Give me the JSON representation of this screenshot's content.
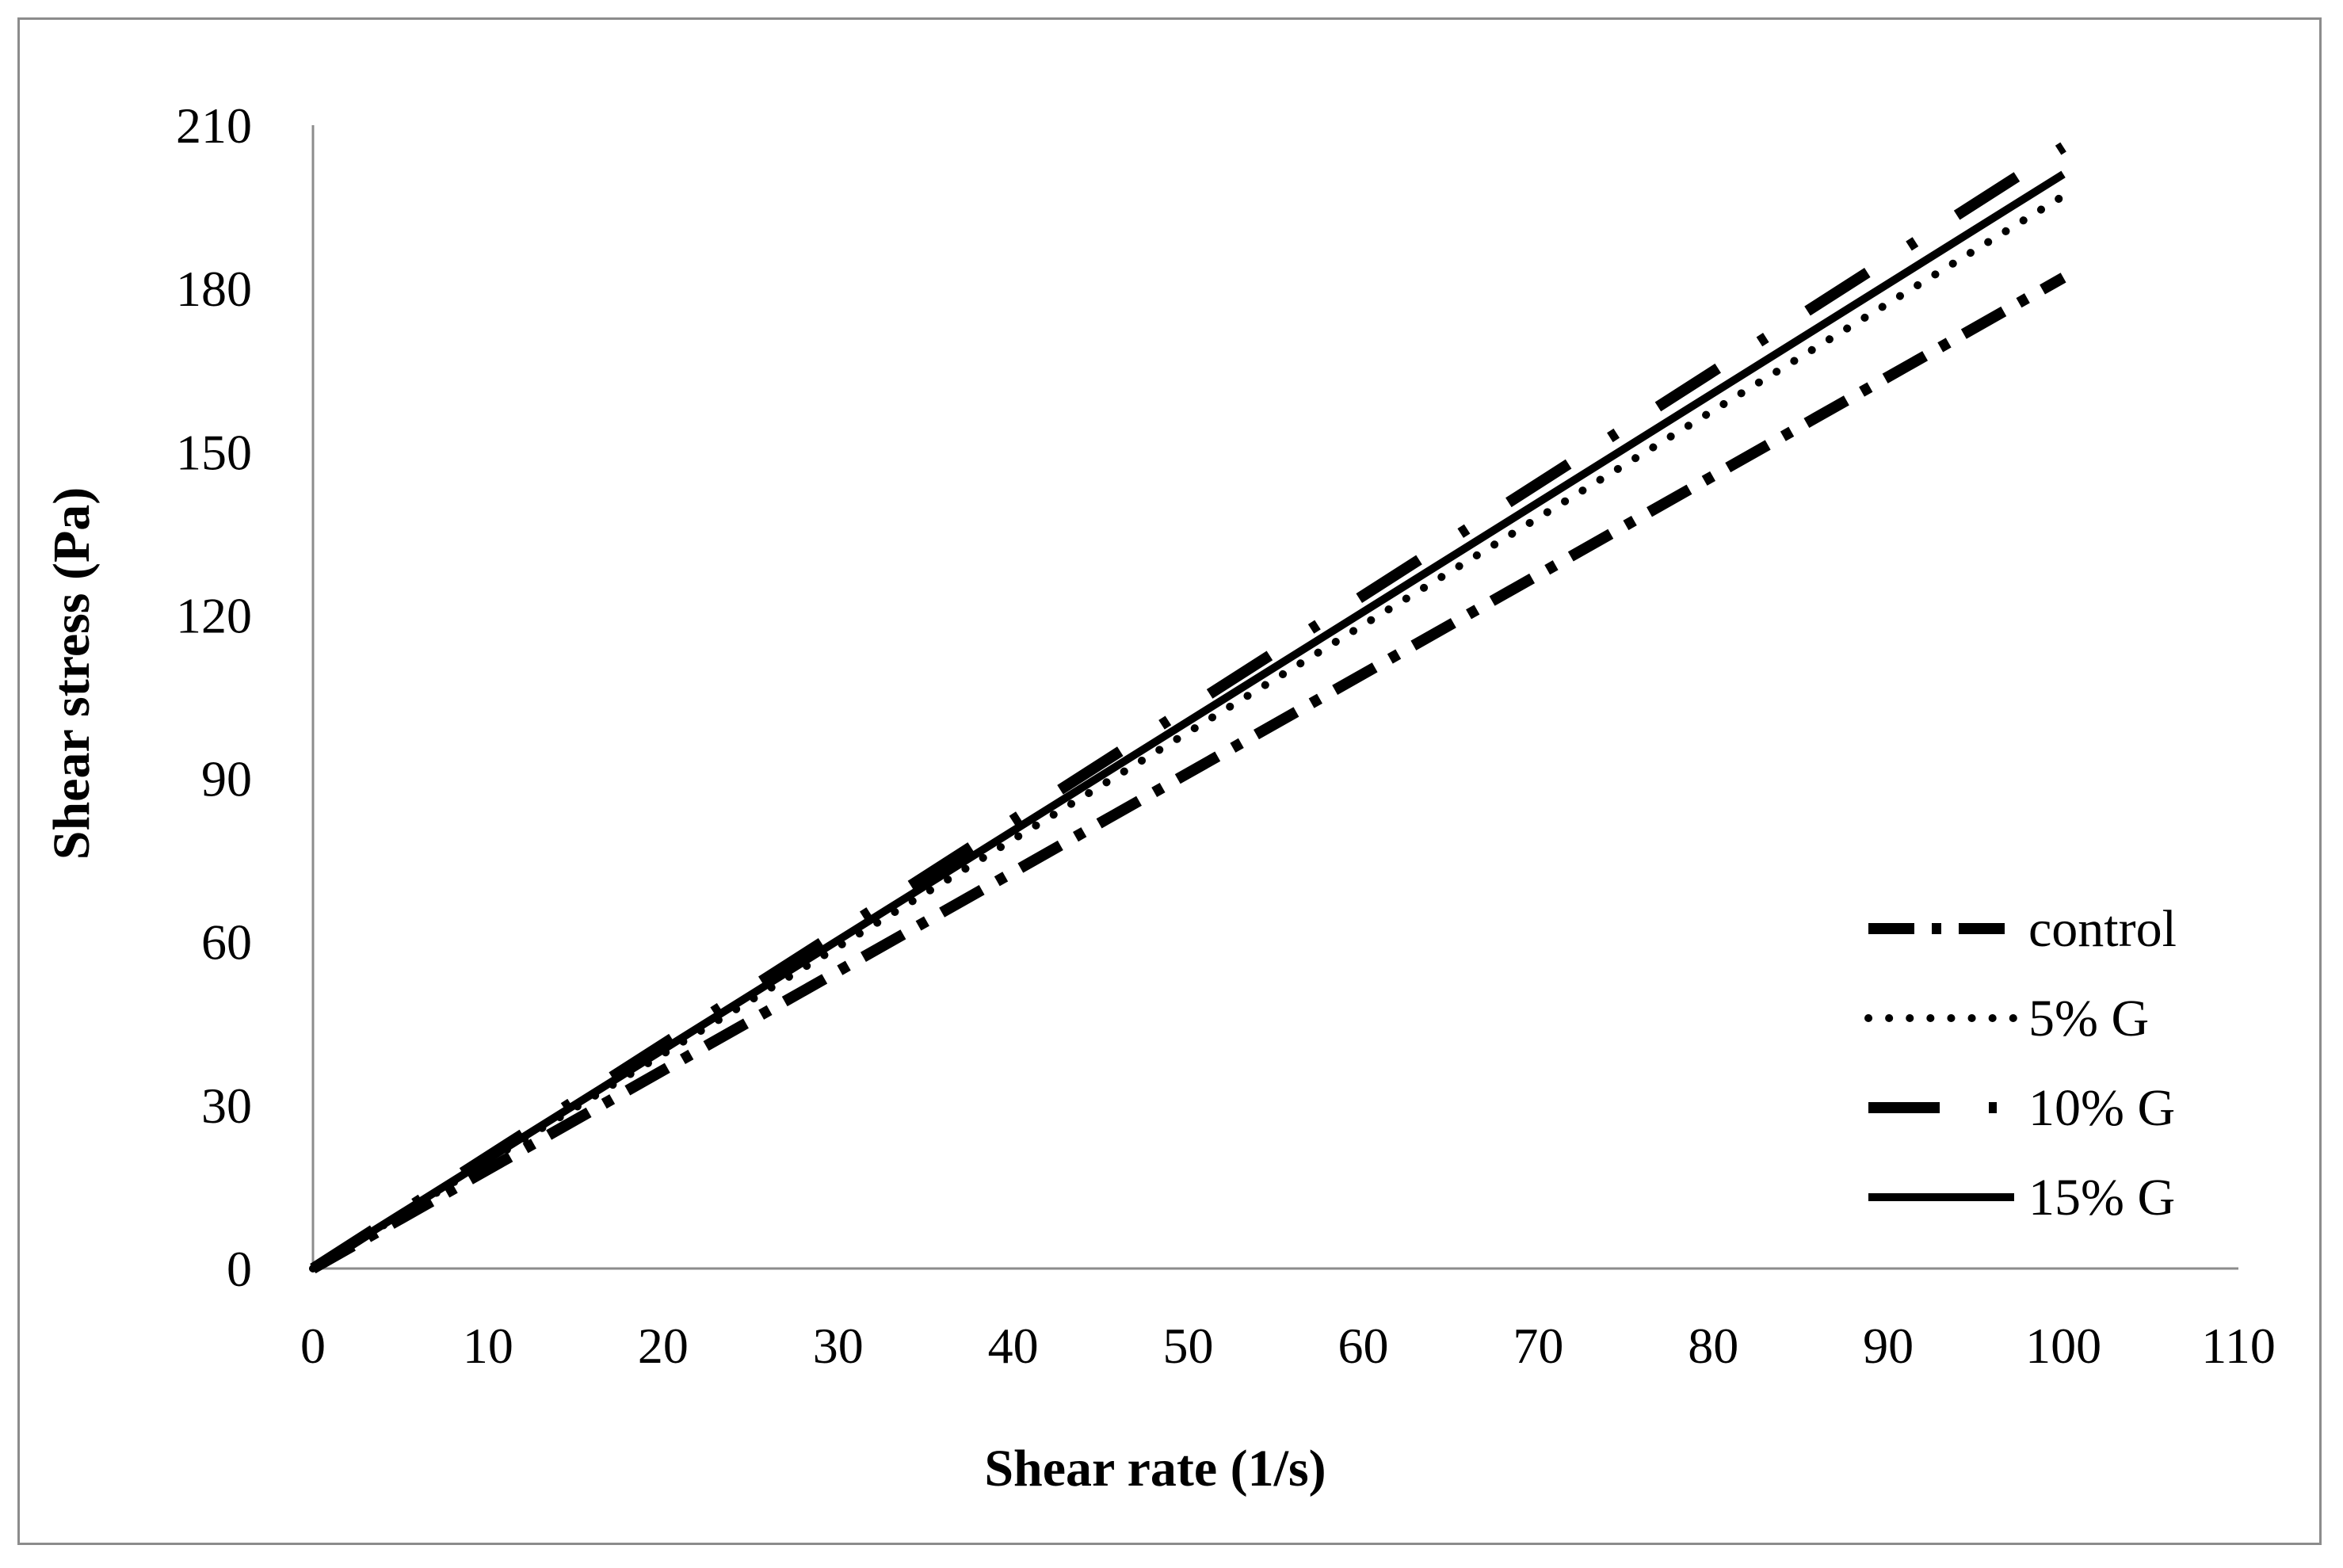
{
  "chart_data": {
    "type": "line",
    "title": "",
    "xlabel": "Shear rate (1/s)",
    "ylabel": "Shear stress (Pa)",
    "xlim": [
      0,
      110
    ],
    "ylim": [
      0,
      210
    ],
    "xticks": [
      "0",
      "10",
      "20",
      "30",
      "40",
      "50",
      "60",
      "70",
      "80",
      "90",
      "100",
      "110"
    ],
    "yticks": [
      "0",
      "30",
      "60",
      "90",
      "120",
      "150",
      "180",
      "210"
    ],
    "grid": false,
    "legend_position": "bottom-right",
    "series": [
      {
        "name": "control",
        "style": "dash-dot",
        "color": "#000000",
        "x": [
          0,
          100
        ],
        "y": [
          0,
          182
        ]
      },
      {
        "name": "5% G",
        "style": "dotted",
        "color": "#000000",
        "x": [
          0,
          100
        ],
        "y": [
          0,
          197
        ]
      },
      {
        "name": "10% G",
        "style": "long-dash-dot",
        "color": "#000000",
        "x": [
          0,
          100
        ],
        "y": [
          0,
          206
        ]
      },
      {
        "name": "15% G",
        "style": "solid",
        "color": "#000000",
        "x": [
          0,
          100
        ],
        "y": [
          0,
          201
        ]
      }
    ]
  }
}
